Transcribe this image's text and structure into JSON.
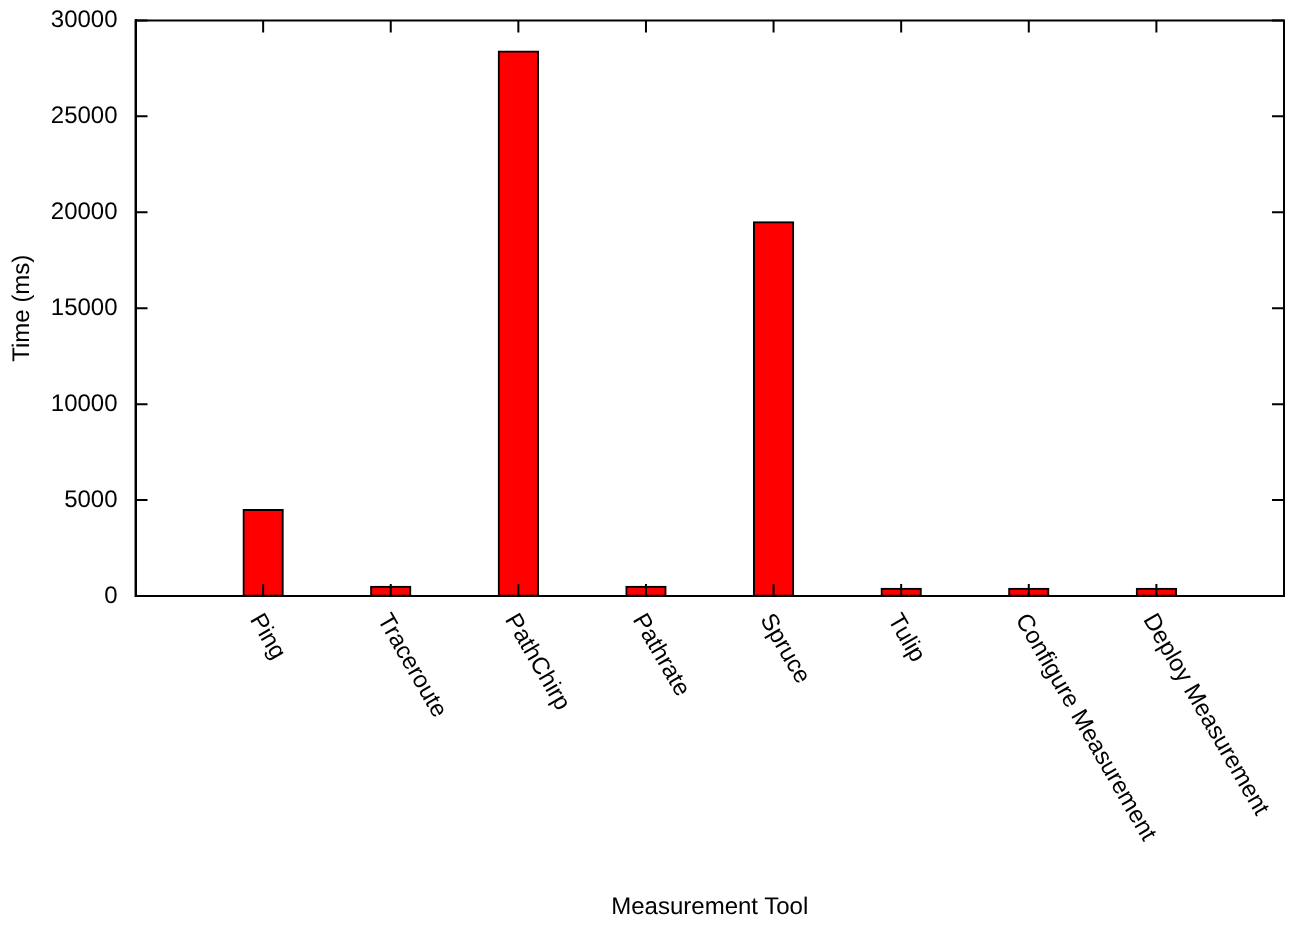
{
  "chart_data": {
    "type": "bar",
    "xlabel": "Measurement Tool",
    "ylabel": "Time (ms)",
    "categories": [
      "Ping",
      "Traceroute",
      "PathChirp",
      "Pathrate",
      "Spruce",
      "Tulip",
      "Configure Measurement",
      "Deploy Measurement"
    ],
    "values": [
      4500,
      500,
      28400,
      500,
      19500,
      400,
      400,
      400
    ],
    "color": "#ff0000",
    "ylim": [
      0,
      30000
    ],
    "yticks": [
      0,
      5000,
      10000,
      15000,
      20000,
      25000,
      30000
    ],
    "grid": false,
    "legend": false
  }
}
